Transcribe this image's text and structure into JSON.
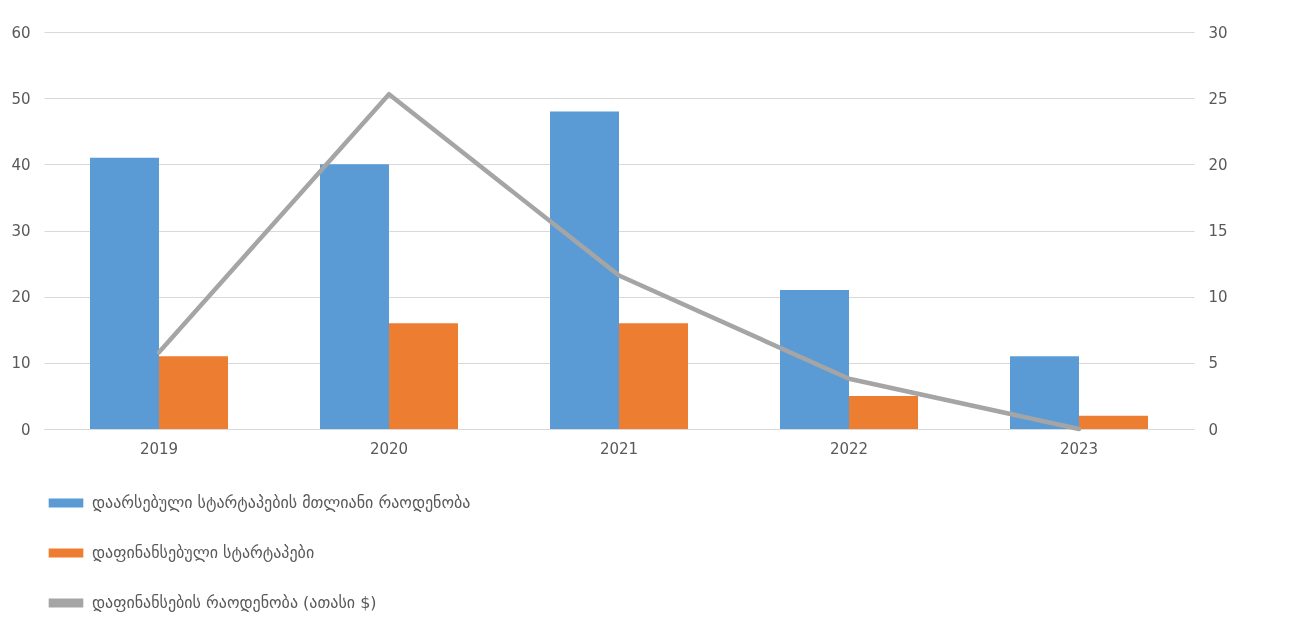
{
  "chart_data": {
    "type": "bar",
    "categories": [
      "2019",
      "2020",
      "2021",
      "2022",
      "2023"
    ],
    "series": [
      {
        "name": "დაარსებული სტარტაპების მთლიანი რაოდენობა",
        "color": "#5b9bd5",
        "values": [
          41,
          40,
          48,
          21,
          11
        ]
      },
      {
        "name": "დაფინანსებული სტარტაპები",
        "color": "#ed7d31",
        "values": [
          11,
          16,
          16,
          5,
          2
        ]
      },
      {
        "name": "დაფინანსების რაოდენობა (ათასი $)",
        "color": "#a5a5a5",
        "type": "line",
        "axis": "y2",
        "values": [
          5.8,
          25.3,
          11.6,
          3.8,
          0
        ]
      }
    ],
    "ylim": [
      0,
      60
    ],
    "yticks": [
      0,
      10,
      20,
      30,
      40,
      50,
      60
    ],
    "y2lim": [
      0,
      30
    ],
    "y2ticks": [
      0,
      5,
      10,
      15,
      20,
      25,
      30
    ],
    "grid": "y",
    "legend": "bottom"
  }
}
